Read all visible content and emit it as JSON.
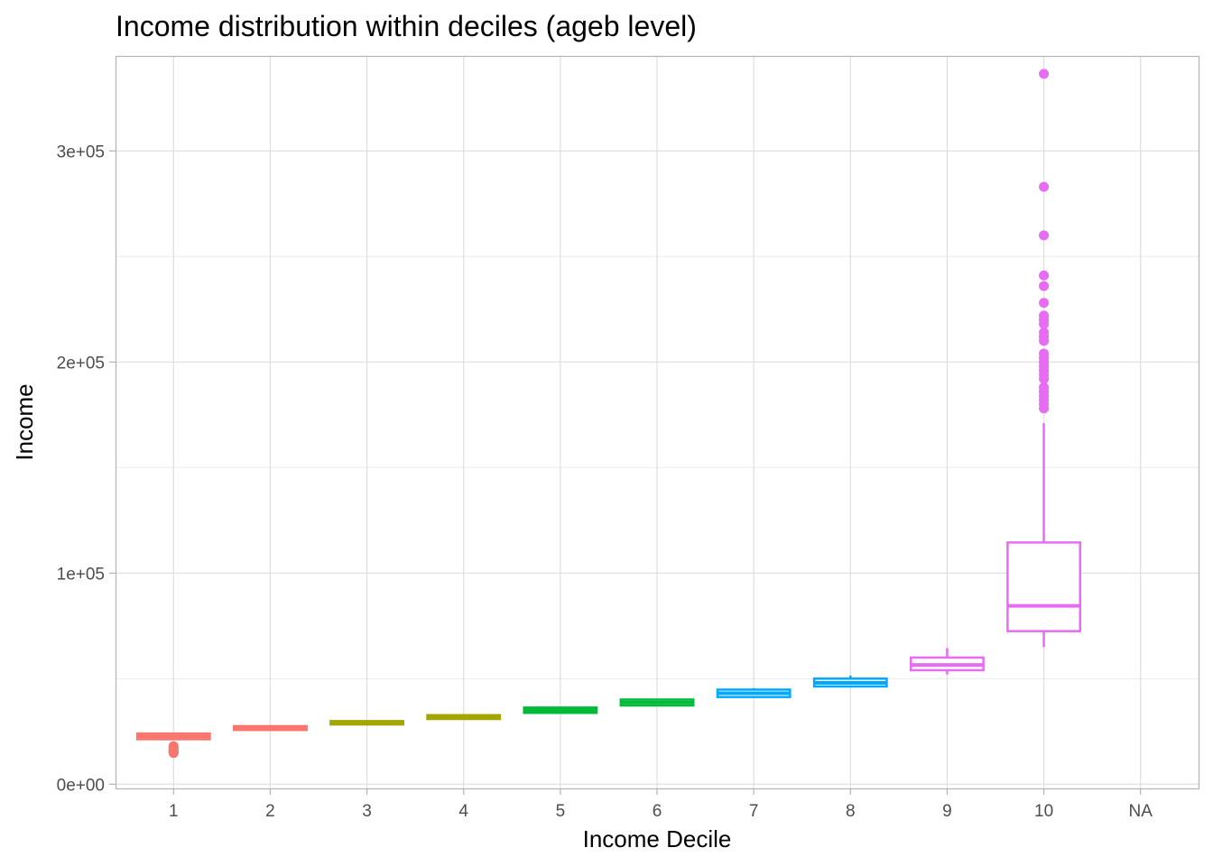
{
  "chart_data": {
    "type": "boxplot",
    "title": "Income distribution within deciles (ageb level)",
    "xlabel": "Income Decile",
    "ylabel": "Income",
    "categories": [
      "1",
      "2",
      "3",
      "4",
      "5",
      "6",
      "7",
      "8",
      "9",
      "10",
      "NA"
    ],
    "ylim": [
      -2000,
      345000
    ],
    "y_ticks": [
      0,
      100000,
      200000,
      300000
    ],
    "y_tick_labels": [
      "0e+00",
      "1e+05",
      "2e+05",
      "3e+05"
    ],
    "y_minor_ticks": [
      50000,
      150000,
      250000
    ],
    "grid": true,
    "legend": "none",
    "boxes": [
      {
        "category": "1",
        "color": "#F8766D",
        "whisker_low": 21300,
        "q1": 21300,
        "median": 22600,
        "q3": 24000,
        "whisker_high": 24300,
        "outliers": [
          14800,
          15200,
          15600,
          16000,
          16500,
          17000,
          17500,
          18000
        ]
      },
      {
        "category": "2",
        "color": "#F8766D",
        "whisker_low": 25700,
        "q1": 25700,
        "median": 26600,
        "q3": 27500,
        "whisker_high": 27700,
        "outliers": []
      },
      {
        "category": "3",
        "color": "#A3A500",
        "whisker_low": 28300,
        "q1": 28300,
        "median": 29100,
        "q3": 29900,
        "whisker_high": 30100,
        "outliers": []
      },
      {
        "category": "4",
        "color": "#A3A500",
        "whisker_low": 30900,
        "q1": 30900,
        "median": 31800,
        "q3": 32700,
        "whisker_high": 32900,
        "outliers": []
      },
      {
        "category": "5",
        "color": "#00BA38",
        "whisker_low": 33800,
        "q1": 33800,
        "median": 35000,
        "q3": 36300,
        "whisker_high": 36600,
        "outliers": []
      },
      {
        "category": "6",
        "color": "#00BA38",
        "whisker_low": 37300,
        "q1": 37300,
        "median": 38700,
        "q3": 40100,
        "whisker_high": 40500,
        "outliers": []
      },
      {
        "category": "7",
        "color": "#00A9FF",
        "whisker_low": 41300,
        "q1": 41300,
        "median": 43100,
        "q3": 44800,
        "whisker_high": 45500,
        "outliers": []
      },
      {
        "category": "8",
        "color": "#00A9FF",
        "whisker_low": 45800,
        "q1": 46300,
        "median": 48000,
        "q3": 50000,
        "whisker_high": 51500,
        "outliers": []
      },
      {
        "category": "9",
        "color": "#E76BF3",
        "whisker_low": 52000,
        "q1": 54000,
        "median": 56500,
        "q3": 60000,
        "whisker_high": 64500,
        "outliers": []
      },
      {
        "category": "10",
        "color": "#E76BF3",
        "whisker_low": 65000,
        "q1": 72500,
        "median": 84500,
        "q3": 114500,
        "whisker_high": 171000,
        "outliers": [
          178000,
          180000,
          182000,
          184000,
          186000,
          188000,
          192000,
          194000,
          196000,
          198000,
          200000,
          202000,
          204000,
          210000,
          212000,
          214000,
          218000,
          220000,
          222000,
          228000,
          236000,
          241000,
          260000,
          283000,
          336500
        ]
      }
    ]
  }
}
